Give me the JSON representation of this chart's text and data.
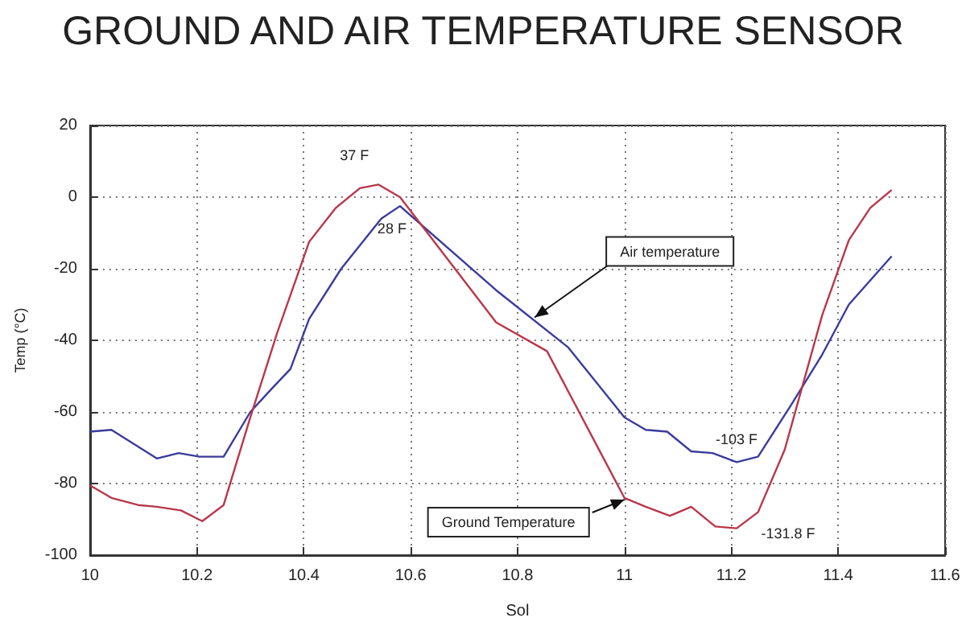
{
  "chart_data": {
    "type": "line",
    "title": "GROUND AND AIR TEMPERATURE SENSOR",
    "xlabel": "Sol",
    "ylabel": "Temp (°C)",
    "xlim": [
      10,
      11.6
    ],
    "xticks": [
      10,
      10.2,
      10.4,
      10.6,
      10.8,
      11,
      11.2,
      11.4,
      11.6
    ],
    "ylim": [
      -100,
      20
    ],
    "yticks": [
      -100,
      -80,
      -60,
      -40,
      -20,
      0,
      20
    ],
    "grid": true,
    "marker": "none",
    "line_style": "solid",
    "series": [
      {
        "color": "#3b3b9c",
        "x": [
          10.0,
          10.04,
          10.125,
          10.166,
          10.205,
          10.25,
          10.3,
          10.34,
          10.375,
          10.41,
          10.47,
          10.545,
          10.58,
          10.76,
          10.895,
          11.0,
          11.04,
          11.08,
          11.125,
          11.165,
          11.21,
          11.25,
          11.31,
          11.37,
          11.42,
          11.5
        ],
        "values": [
          -65.5,
          -65,
          -73,
          -71.5,
          -72.5,
          -72.5,
          -60,
          -53.5,
          -48,
          -34,
          -20,
          -6,
          -2.5,
          -26,
          -42,
          -61.5,
          -65,
          -65.5,
          -71,
          -71.5,
          -74,
          -72.5,
          -58.5,
          -44,
          -30,
          -16.5
        ]
      },
      {
        "color": "#b8374a",
        "x": [
          10.0,
          10.04,
          10.09,
          10.125,
          10.17,
          10.21,
          10.25,
          10.3,
          10.35,
          10.41,
          10.46,
          10.505,
          10.54,
          10.58,
          10.76,
          10.855,
          11.0,
          11.04,
          11.085,
          11.125,
          11.17,
          11.21,
          11.25,
          11.3,
          11.37,
          11.42,
          11.46,
          11.5
        ],
        "values": [
          -80.5,
          -84,
          -86,
          -86.5,
          -87.5,
          -90.5,
          -86,
          -61.5,
          -38,
          -12.5,
          -3,
          2.5,
          3.5,
          0,
          -35,
          -43,
          -84,
          -86.5,
          -89,
          -86.5,
          -92,
          -92.5,
          -88,
          -70.5,
          -33,
          -12,
          -3,
          2
        ]
      }
    ],
    "annotations": [
      {
        "text": "37 F",
        "x": 10.54,
        "y": 3.5
      },
      {
        "text": "28 F",
        "x": 10.58,
        "y": -2.5
      },
      {
        "text": "Air temperature",
        "x": 10.832,
        "y": -33.6
      },
      {
        "text": "Ground Temperature",
        "x": 11.0,
        "y": -84.5
      },
      {
        "text": "-103 F",
        "x": 11.21,
        "y": -74
      },
      {
        "text": "-131.8 F",
        "x": 11.21,
        "y": -92.5
      }
    ]
  }
}
